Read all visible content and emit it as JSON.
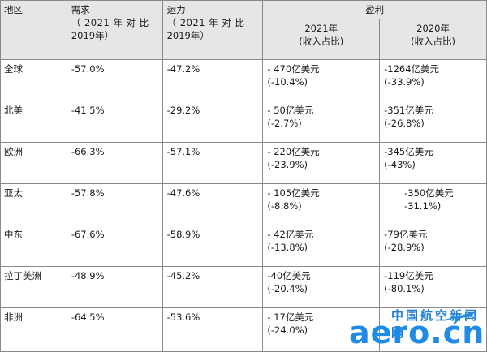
{
  "header": {
    "region": "地区",
    "demand": "需求",
    "demand_sub1": "（ 2021 年 对 比",
    "demand_sub2": "2019年）",
    "capacity": "运力",
    "capacity_sub1": "（ 2021 年 对 比",
    "capacity_sub2": "2019年）",
    "profit": "盈利",
    "y2021": "2021年",
    "y2021_sub": "(收入占比)",
    "y2020": "2020年",
    "y2020_sub": "(收入占比)"
  },
  "rows": [
    {
      "region": "全球",
      "demand": "-57.0%",
      "capacity": "-47.2%",
      "p2021": "- 470亿美元",
      "p2021_pct": "(-10.4%)",
      "p2020": "-1264亿美元",
      "p2020_pct": "(-33.9%)"
    },
    {
      "region": "北美",
      "demand": "-41.5%",
      "capacity": "-29.2%",
      "p2021": "- 50亿美元",
      "p2021_pct": "(-2.7%)",
      "p2020": "-351亿美元",
      "p2020_pct": "(-26.8%)"
    },
    {
      "region": "欧洲",
      "demand": "-66.3%",
      "capacity": "-57.1%",
      "p2021": "- 220亿美元",
      "p2021_pct": "(-23.9%)",
      "p2020": "-345亿美元",
      "p2020_pct": "(-43%)"
    },
    {
      "region": "亚太",
      "demand": "-57.8%",
      "capacity": "-47.6%",
      "p2021": "- 105亿美元",
      "p2021_pct": "(-8.8%)",
      "p2020": "-350亿美元",
      "p2020_pct": "-31.1%)"
    },
    {
      "region": "中东",
      "demand": "-67.6%",
      "capacity": "-58.9%",
      "p2021": "- 42亿美元",
      "p2021_pct": "(-13.8%)",
      "p2020": "-79亿美元",
      "p2020_pct": "(-28.9%)"
    },
    {
      "region": "拉丁美洲",
      "demand": "-48.9%",
      "capacity": "-45.2%",
      "p2021": "-40亿美元",
      "p2021_pct": "(-20.4%)",
      "p2020": "-119亿美元",
      "p2020_pct": "(-80.1%)"
    },
    {
      "region": "非洲",
      "demand": "-64.5%",
      "capacity": "-53.6%",
      "p2021": "- 17亿美元",
      "p2021_pct": "(-24.0%)",
      "p2020": "",
      "p2020_pct": ""
    }
  ],
  "watermark": {
    "cn": "中国航空新闻网",
    "en": "aero.cn",
    "color": "#1e8be6",
    "icon": "plane-icon"
  }
}
